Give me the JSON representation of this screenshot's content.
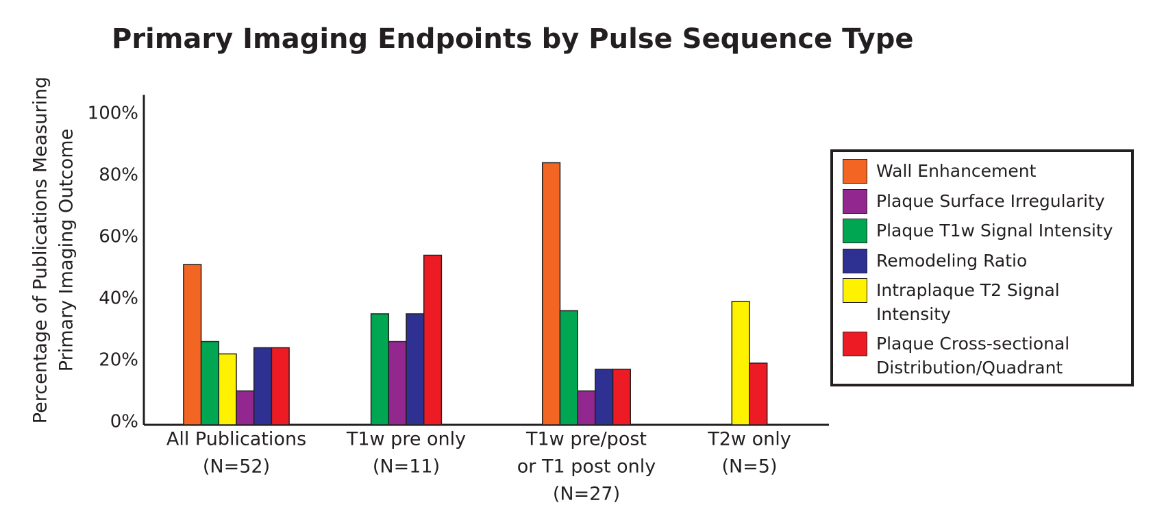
{
  "chart_data": {
    "type": "bar",
    "title": "Primary Imaging Endpoints by Pulse Sequence Type",
    "ylabel": [
      "Percentage of Publications Measuring",
      "Primary Imaging Outcome"
    ],
    "categories": [
      [
        "All Publications",
        "(N=52)"
      ],
      [
        "T1w pre only",
        "(N=11)"
      ],
      [
        "T1w pre/post",
        "or T1 post only",
        "(N=27)"
      ],
      [
        "T2w only",
        "(N=5)"
      ]
    ],
    "series": [
      {
        "name": "Wall Enhancement",
        "color": "#f26522",
        "values": [
          52,
          null,
          85,
          null
        ]
      },
      {
        "name": "Plaque Surface Irregularity",
        "color": "#92278f",
        "values": [
          11,
          27,
          11,
          null
        ]
      },
      {
        "name": "Plaque T1w Signal Intensity",
        "color": "#00a651",
        "values": [
          27,
          36,
          37,
          null
        ]
      },
      {
        "name": "Remodeling Ratio",
        "color": "#2e3192",
        "values": [
          25,
          36,
          18,
          null
        ]
      },
      {
        "name": "Intraplaque T2 Signal Intensity",
        "color": "#fff200",
        "values": [
          23,
          null,
          null,
          40
        ]
      },
      {
        "name": "Plaque Cross-sectional Distribution/Quadrant",
        "color": "#ed1c24",
        "values": [
          25,
          55,
          18,
          20
        ]
      }
    ],
    "ylim": [
      0,
      107
    ],
    "yticks": [
      {
        "value": 0,
        "label": "0%"
      },
      {
        "value": 20,
        "label": "20%"
      },
      {
        "value": 40,
        "label": "40%"
      },
      {
        "value": 60,
        "label": "60%"
      },
      {
        "value": 80,
        "label": "80%"
      },
      {
        "value": 100,
        "label": "100%"
      }
    ],
    "legend": "right"
  }
}
